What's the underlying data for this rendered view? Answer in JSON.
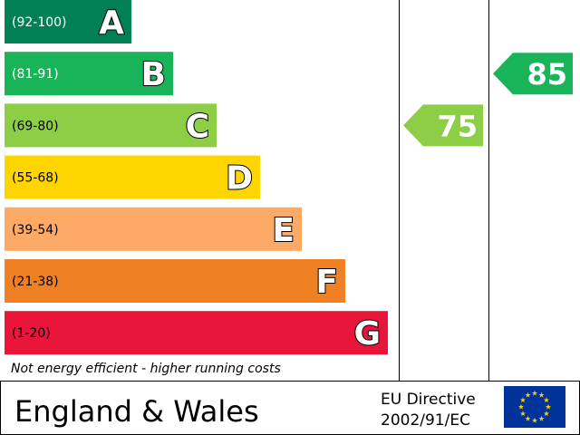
{
  "chart_data": {
    "type": "bar",
    "categories": [
      "(92-100)",
      "(81-91)",
      "(69-80)",
      "(55-68)",
      "(39-54)",
      "(21-38)",
      "(1-20)"
    ],
    "bands": [
      {
        "range": "(92-100)",
        "letter": "A",
        "color": "#008054",
        "range_color": "#ffffff"
      },
      {
        "range": "(81-91)",
        "letter": "B",
        "color": "#19b459",
        "range_color": "#ffffff"
      },
      {
        "range": "(69-80)",
        "letter": "C",
        "color": "#8dce46",
        "range_color": "#000000"
      },
      {
        "range": "(55-68)",
        "letter": "D",
        "color": "#ffd500",
        "range_color": "#000000"
      },
      {
        "range": "(39-54)",
        "letter": "E",
        "color": "#fcaa65",
        "range_color": "#000000"
      },
      {
        "range": "(21-38)",
        "letter": "F",
        "color": "#ef8023",
        "range_color": "#000000"
      },
      {
        "range": "(1-20)",
        "letter": "G",
        "color": "#e9153b",
        "range_color": "#000000"
      }
    ],
    "footnote": "Not energy efficient - higher running costs",
    "ratings": {
      "current": {
        "value": 75,
        "band": "C",
        "color": "#8dce46"
      },
      "potential": {
        "value": 85,
        "band": "B",
        "color": "#19b459"
      }
    }
  },
  "footer": {
    "country": "England & Wales",
    "directive_line1": "EU Directive",
    "directive_line2": "2002/91/EC",
    "flag_icon": "eu-flag-icon",
    "flag_color": "#003399",
    "star_color": "#ffcc00"
  }
}
